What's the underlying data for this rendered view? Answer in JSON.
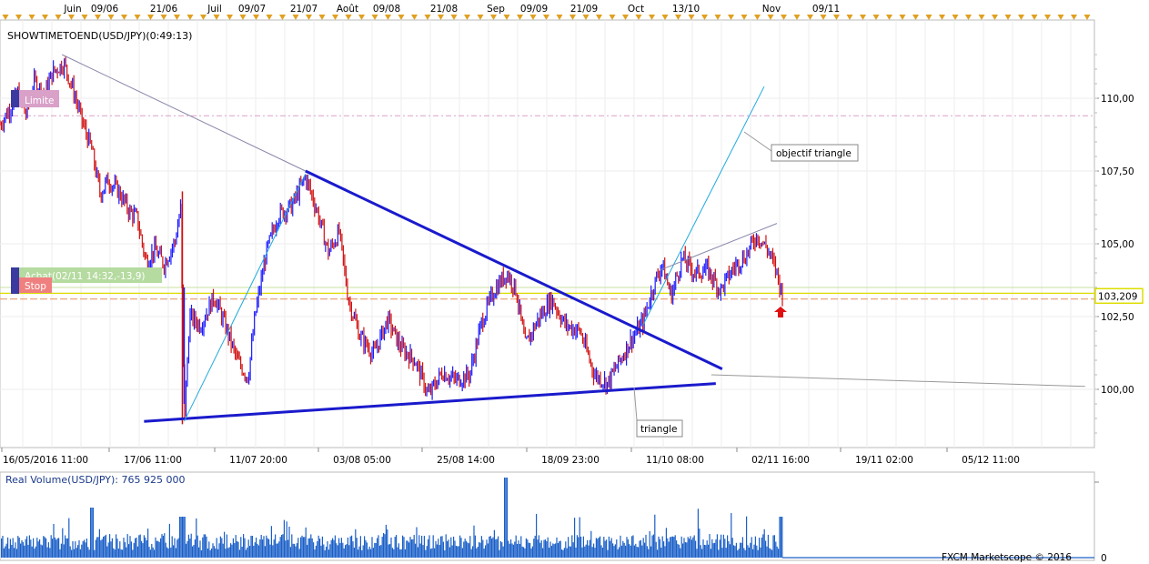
{
  "chart_data": [
    {
      "type": "candlestick",
      "title": "SHOWTIMETOEND(USD/JPY)(0:49:13)",
      "top_time_labels": [
        "Juin",
        "09/06",
        "21/06",
        "Juil",
        "09/07",
        "21/07",
        "Août",
        "09/08",
        "21/08",
        "Sep",
        "09/09",
        "21/09",
        "Oct",
        "13/10",
        "Nov",
        "09/11"
      ],
      "bottom_time_labels": [
        "16/05/2016 11:00",
        "17/06 11:00",
        "11/07 20:00",
        "03/08 05:00",
        "25/08 14:00",
        "18/09 23:00",
        "11/10 08:00",
        "02/11 16:00",
        "19/11 02:00",
        "05/12 11:00"
      ],
      "y_tick_labels": [
        "110,00",
        "107,50",
        "105,00",
        "102,50",
        "100,00"
      ],
      "y_ticks": [
        110.0,
        107.5,
        105.0,
        102.5,
        100.0
      ],
      "ylim": [
        98.2,
        111.8
      ],
      "current_price_label": "103,209",
      "current_price": 103.209,
      "price_path": [
        {
          "t": 0,
          "p": 109.1
        },
        {
          "t": 10,
          "p": 109.6
        },
        {
          "t": 20,
          "p": 110.2
        },
        {
          "t": 28,
          "p": 109.4
        },
        {
          "t": 38,
          "p": 110.6
        },
        {
          "t": 48,
          "p": 110.1
        },
        {
          "t": 58,
          "p": 110.9
        },
        {
          "t": 70,
          "p": 111.2
        },
        {
          "t": 80,
          "p": 110.3
        },
        {
          "t": 92,
          "p": 109.0
        },
        {
          "t": 100,
          "p": 108.3
        },
        {
          "t": 110,
          "p": 106.7
        },
        {
          "t": 118,
          "p": 107.2
        },
        {
          "t": 130,
          "p": 106.8
        },
        {
          "t": 142,
          "p": 106.1
        },
        {
          "t": 150,
          "p": 105.9
        },
        {
          "t": 160,
          "p": 104.4
        },
        {
          "t": 170,
          "p": 104.8
        },
        {
          "t": 180,
          "p": 104.3
        },
        {
          "t": 192,
          "p": 105.1
        },
        {
          "t": 198,
          "p": 106.2
        },
        {
          "t": 202,
          "p": 98.9
        },
        {
          "t": 208,
          "p": 102.5
        },
        {
          "t": 220,
          "p": 102.2
        },
        {
          "t": 235,
          "p": 103.2
        },
        {
          "t": 248,
          "p": 102.1
        },
        {
          "t": 260,
          "p": 101.0
        },
        {
          "t": 272,
          "p": 100.4
        },
        {
          "t": 280,
          "p": 102.6
        },
        {
          "t": 292,
          "p": 104.7
        },
        {
          "t": 305,
          "p": 106.0
        },
        {
          "t": 320,
          "p": 106.3
        },
        {
          "t": 335,
          "p": 107.3
        },
        {
          "t": 348,
          "p": 106.1
        },
        {
          "t": 360,
          "p": 104.7
        },
        {
          "t": 372,
          "p": 105.4
        },
        {
          "t": 382,
          "p": 103.1
        },
        {
          "t": 395,
          "p": 101.8
        },
        {
          "t": 410,
          "p": 101.2
        },
        {
          "t": 425,
          "p": 102.4
        },
        {
          "t": 440,
          "p": 101.4
        },
        {
          "t": 455,
          "p": 101.0
        },
        {
          "t": 470,
          "p": 99.8
        },
        {
          "t": 485,
          "p": 100.6
        },
        {
          "t": 500,
          "p": 100.3
        },
        {
          "t": 515,
          "p": 100.5
        },
        {
          "t": 528,
          "p": 102.3
        },
        {
          "t": 542,
          "p": 103.4
        },
        {
          "t": 556,
          "p": 104.0
        },
        {
          "t": 566,
          "p": 103.4
        },
        {
          "t": 576,
          "p": 101.5
        },
        {
          "t": 590,
          "p": 102.4
        },
        {
          "t": 605,
          "p": 103.1
        },
        {
          "t": 620,
          "p": 102.2
        },
        {
          "t": 636,
          "p": 102.0
        },
        {
          "t": 652,
          "p": 100.5
        },
        {
          "t": 666,
          "p": 100.2
        },
        {
          "t": 680,
          "p": 101.0
        },
        {
          "t": 692,
          "p": 101.7
        },
        {
          "t": 705,
          "p": 102.3
        },
        {
          "t": 716,
          "p": 103.5
        },
        {
          "t": 726,
          "p": 104.3
        },
        {
          "t": 736,
          "p": 103.2
        },
        {
          "t": 748,
          "p": 104.5
        },
        {
          "t": 762,
          "p": 104.0
        },
        {
          "t": 776,
          "p": 104.1
        },
        {
          "t": 790,
          "p": 103.4
        },
        {
          "t": 805,
          "p": 104.2
        },
        {
          "t": 818,
          "p": 104.6
        },
        {
          "t": 830,
          "p": 105.3
        },
        {
          "t": 842,
          "p": 104.8
        },
        {
          "t": 852,
          "p": 104.0
        },
        {
          "t": 858,
          "p": 103.2
        }
      ],
      "annotations": {
        "limit_label": "Limite",
        "limit_price": 109.4,
        "buy_label": "Achat(02/11 14:32,-13,9)",
        "buy_price": 103.5,
        "stop_label": "Stop",
        "stop_price": 103.1,
        "target_label": "objectif triangle",
        "triangle_label": "triangle"
      },
      "colors": {
        "bull": "#1a1aff",
        "bear": "#d01010",
        "triangle_line": "#1a1acc",
        "projection_line": "#22aadd",
        "limit": "#d9a0c8",
        "buy": "#b5dba0",
        "stop": "#f08080",
        "price_marker": "#dddd00",
        "arrow": "#e01010"
      }
    },
    {
      "type": "bar",
      "title": "Real Volume(USD/JPY): 765 925 000",
      "y_tick_label": "0",
      "color": "#1a5fc8"
    }
  ],
  "footer": {
    "copyright": "FXCM Marketscope © 2016"
  }
}
